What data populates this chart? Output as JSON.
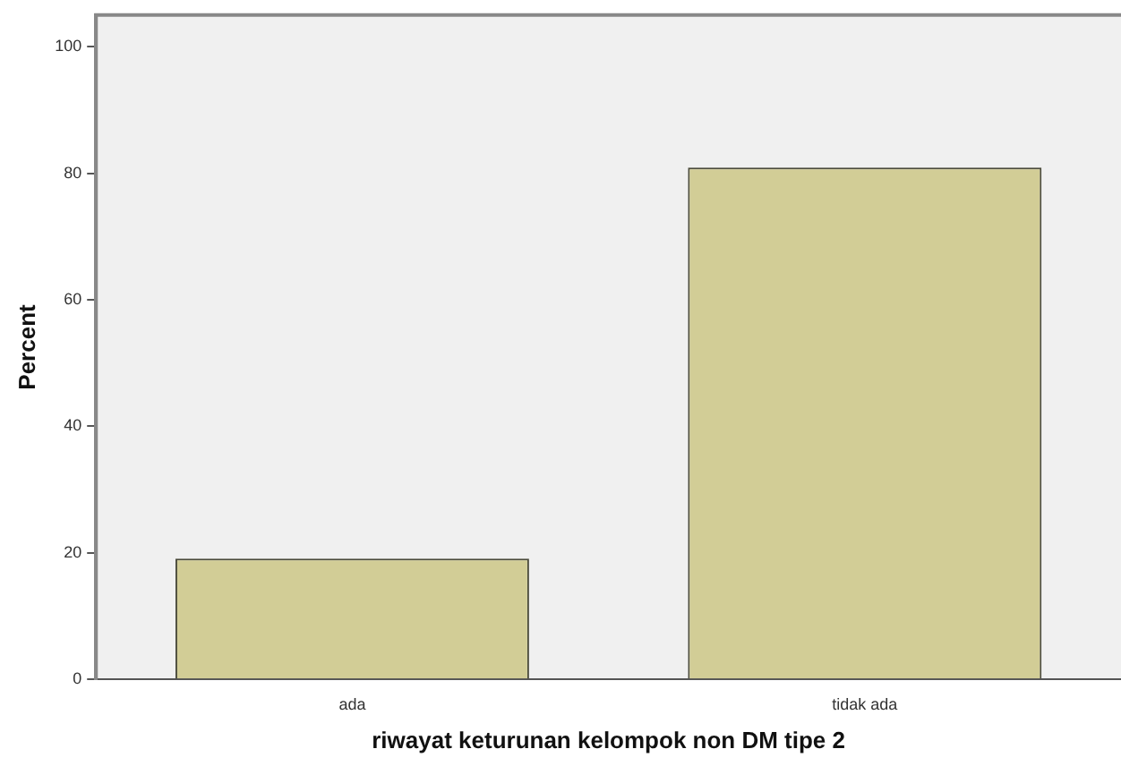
{
  "chart_data": {
    "type": "bar",
    "xlabel": "riwayat keturunan kelompok non DM tipe 2",
    "ylabel": "Percent",
    "categories": [
      "ada",
      "tidak ada"
    ],
    "values": [
      19.1,
      80.9
    ],
    "color": "#d2cd96",
    "ylim": [
      0,
      105
    ],
    "yticks": [
      0,
      20,
      40,
      60,
      80,
      100
    ],
    "grid": false,
    "legend": false
  }
}
